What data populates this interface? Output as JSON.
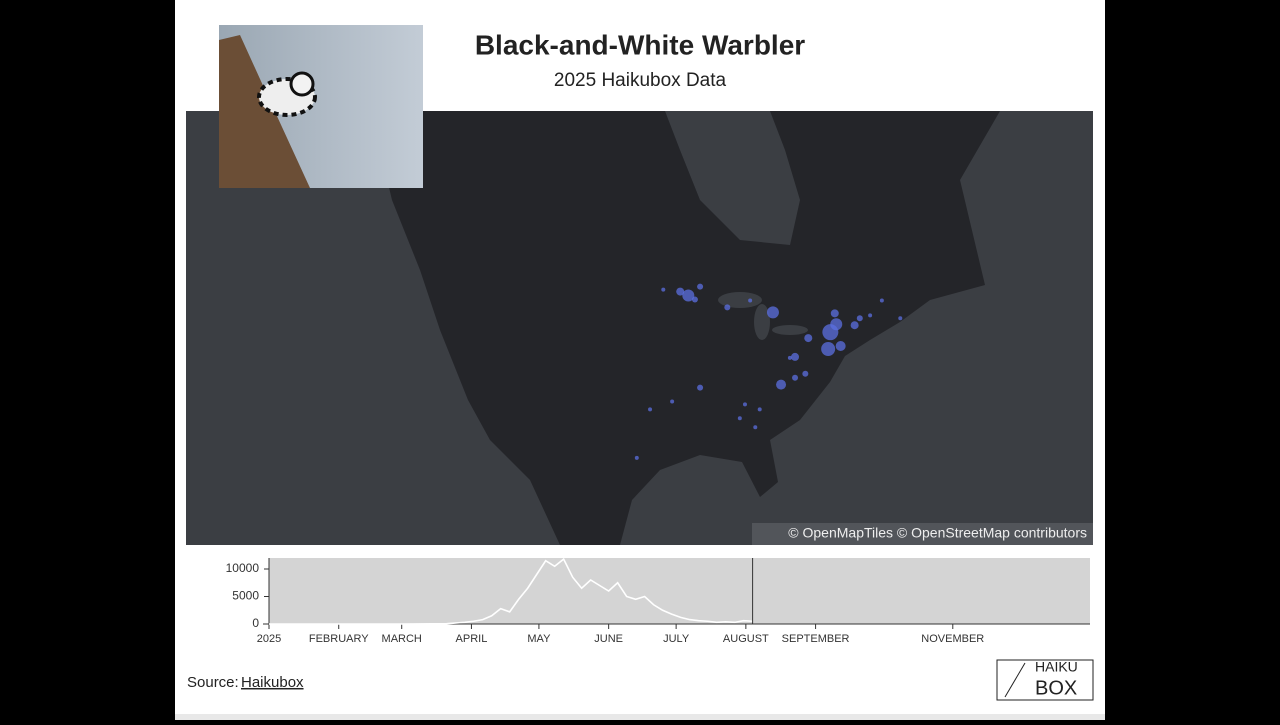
{
  "chart_data": [
    {
      "type": "map",
      "title": "Black-and-White Warbler",
      "subtitle": "2025 Haikubox Data",
      "attribution": "© OpenMapTiles © OpenStreetMap contributors",
      "color": "#5b6fe0",
      "points": [
        {
          "lon": -93.3,
          "lat": 45.3,
          "size": 6
        },
        {
          "lon": -94.4,
          "lat": 45.7,
          "size": 4
        },
        {
          "lon": -92.4,
          "lat": 44.9,
          "size": 3
        },
        {
          "lon": -96.7,
          "lat": 45.9,
          "size": 2
        },
        {
          "lon": -91.7,
          "lat": 46.2,
          "size": 3
        },
        {
          "lon": -88.0,
          "lat": 44.1,
          "size": 3
        },
        {
          "lon": -81.8,
          "lat": 43.6,
          "size": 6
        },
        {
          "lon": -84.9,
          "lat": 44.8,
          "size": 2
        },
        {
          "lon": -77.0,
          "lat": 41.0,
          "size": 4
        },
        {
          "lon": -78.8,
          "lat": 39.1,
          "size": 4
        },
        {
          "lon": -74.0,
          "lat": 41.6,
          "size": 8
        },
        {
          "lon": -73.2,
          "lat": 42.4,
          "size": 6
        },
        {
          "lon": -72.6,
          "lat": 40.2,
          "size": 5
        },
        {
          "lon": -74.3,
          "lat": 39.9,
          "size": 7
        },
        {
          "lon": -70.7,
          "lat": 42.3,
          "size": 4
        },
        {
          "lon": -70.0,
          "lat": 43.0,
          "size": 3
        },
        {
          "lon": -68.6,
          "lat": 43.3,
          "size": 2
        },
        {
          "lon": -64.5,
          "lat": 43.0,
          "size": 2
        },
        {
          "lon": -67.0,
          "lat": 44.8,
          "size": 2
        },
        {
          "lon": -73.4,
          "lat": 43.5,
          "size": 4
        },
        {
          "lon": -80.7,
          "lat": 36.3,
          "size": 5
        },
        {
          "lon": -78.8,
          "lat": 37.0,
          "size": 3
        },
        {
          "lon": -77.4,
          "lat": 37.4,
          "size": 3
        },
        {
          "lon": -91.7,
          "lat": 36.0,
          "size": 3
        },
        {
          "lon": -85.6,
          "lat": 34.3,
          "size": 2
        },
        {
          "lon": -83.6,
          "lat": 33.8,
          "size": 2
        },
        {
          "lon": -98.5,
          "lat": 33.8,
          "size": 2
        },
        {
          "lon": -95.5,
          "lat": 34.6,
          "size": 2
        },
        {
          "lon": -100.3,
          "lat": 28.9,
          "size": 2
        },
        {
          "lon": -84.2,
          "lat": 32.0,
          "size": 2
        },
        {
          "lon": -86.3,
          "lat": 32.9,
          "size": 2
        },
        {
          "lon": -79.5,
          "lat": 39.0,
          "size": 2
        }
      ]
    },
    {
      "type": "line",
      "color": "#ffffff",
      "x": [
        1,
        30,
        60,
        80,
        88,
        92,
        96,
        100,
        104,
        108,
        112,
        116,
        120,
        124,
        128,
        132,
        136,
        140,
        144,
        148,
        152,
        156,
        160,
        164,
        168,
        172,
        176,
        180,
        184,
        188,
        192,
        196,
        200,
        204,
        208,
        212,
        216
      ],
      "values": [
        0,
        0,
        0,
        50,
        300,
        500,
        800,
        1500,
        2800,
        2200,
        4500,
        6500,
        9000,
        11500,
        10500,
        11800,
        8500,
        6500,
        8000,
        7000,
        6000,
        7500,
        5000,
        4500,
        5000,
        3500,
        2500,
        1800,
        1200,
        800,
        600,
        500,
        300,
        400,
        300,
        600,
        500
      ],
      "xlim": [
        1,
        366
      ],
      "ylim": [
        0,
        12000
      ],
      "yticks": [
        0,
        5000,
        10000
      ],
      "xticks": [
        {
          "value": 1,
          "label": "2025"
        },
        {
          "value": 32,
          "label": "FEBRUARY"
        },
        {
          "value": 60,
          "label": "MARCH"
        },
        {
          "value": 91,
          "label": "APRIL"
        },
        {
          "value": 121,
          "label": "MAY"
        },
        {
          "value": 152,
          "label": "JUNE"
        },
        {
          "value": 182,
          "label": "JULY"
        },
        {
          "value": 213,
          "label": "AUGUST"
        },
        {
          "value": 244,
          "label": "SEPTEMBER"
        },
        {
          "value": 305,
          "label": "NOVEMBER"
        }
      ]
    }
  ],
  "footer": {
    "source_label": "Source:",
    "source_link": "Haikubox",
    "logo_top": "HAIKU",
    "logo_bottom": "BOX"
  }
}
